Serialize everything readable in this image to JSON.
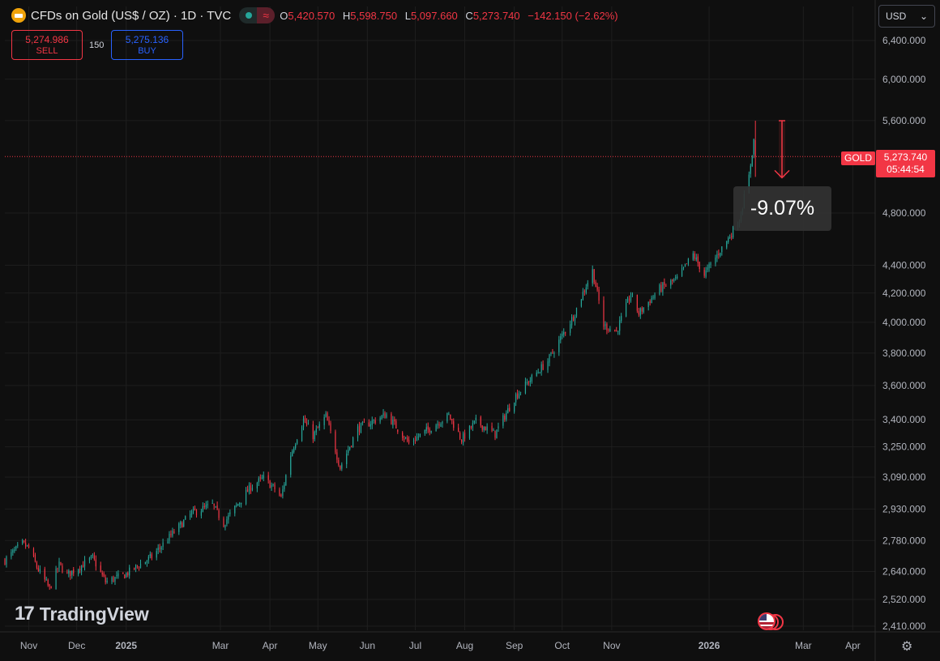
{
  "header": {
    "title": "CFDs on Gold (US$ / OZ) · 1D · TVC",
    "open_label": "O",
    "open": "5,420.570",
    "high_label": "H",
    "high": "5,598.750",
    "low_label": "L",
    "low": "5,097.660",
    "close_label": "C",
    "close": "5,273.740",
    "change": "−142.150 (−2.62%)",
    "market_status_icon": "market-open-dot-icon",
    "wave_icon": "≈"
  },
  "trade": {
    "sell_price": "5,274.986",
    "sell_label": "SELL",
    "spread": "150",
    "buy_price": "5,275.136",
    "buy_label": "BUY"
  },
  "currency": {
    "label": "USD",
    "chevron": "⌄"
  },
  "watermark": {
    "icon": "17",
    "text": "TradingView"
  },
  "price_label": {
    "symbol": "GOLD",
    "price": "5,273.740",
    "countdown": "05:44:54"
  },
  "measure": {
    "text": "-9.07%"
  },
  "colors": {
    "up": "#26a69a",
    "down": "#f23645",
    "background": "#0f0f0f",
    "grid": "#1e1e1e",
    "axis_text": "#b2b5be"
  },
  "chart_data": {
    "type": "candlestick",
    "y_scale": "log",
    "ylim": [
      2410,
      6400
    ],
    "y_ticks": [
      "6,400.000",
      "6,000.000",
      "5,600.000",
      "4,800.000",
      "4,400.000",
      "4,200.000",
      "4,000.000",
      "3,800.000",
      "3,600.000",
      "3,400.000",
      "3,250.000",
      "3,090.000",
      "2,930.000",
      "2,780.000",
      "2,640.000",
      "2,520.000",
      "2,410.000"
    ],
    "x_labels": [
      "Nov",
      "Dec",
      "2025",
      "Mar",
      "Apr",
      "May",
      "Jun",
      "Jul",
      "Aug",
      "Sep",
      "Oct",
      "Nov",
      "2026",
      "Mar",
      "Apr"
    ],
    "x_label_dates": [
      "2024-11-01",
      "2024-12-01",
      "2025-01-01",
      "2025-03-01",
      "2025-04-01",
      "2025-05-01",
      "2025-06-01",
      "2025-07-01",
      "2025-08-01",
      "2025-09-01",
      "2025-10-01",
      "2025-11-01",
      "2026-01-01",
      "2026-03-01",
      "2026-04-01"
    ],
    "x_range": [
      "2024-10-17",
      "2026-04-15"
    ],
    "price_path": [
      [
        "2024-10-17",
        2690
      ],
      [
        "2024-10-28",
        2765
      ],
      [
        "2024-11-01",
        2745
      ],
      [
        "2024-11-06",
        2660
      ],
      [
        "2024-11-14",
        2565
      ],
      [
        "2024-11-20",
        2670
      ],
      [
        "2024-11-25",
        2625
      ],
      [
        "2024-12-11",
        2700
      ],
      [
        "2024-12-19",
        2595
      ],
      [
        "2024-12-31",
        2625
      ],
      [
        "2025-01-17",
        2705
      ],
      [
        "2025-02-11",
        2910
      ],
      [
        "2025-02-24",
        2950
      ],
      [
        "2025-03-03",
        2860
      ],
      [
        "2025-03-20",
        3040
      ],
      [
        "2025-03-28",
        3085
      ],
      [
        "2025-04-04",
        3030
      ],
      [
        "2025-04-08",
        2985
      ],
      [
        "2025-04-14",
        3210
      ],
      [
        "2025-04-22",
        3400
      ],
      [
        "2025-04-28",
        3310
      ],
      [
        "2025-05-06",
        3420
      ],
      [
        "2025-05-15",
        3140
      ],
      [
        "2025-05-26",
        3350
      ],
      [
        "2025-06-13",
        3430
      ],
      [
        "2025-06-27",
        3270
      ],
      [
        "2025-07-22",
        3425
      ],
      [
        "2025-07-30",
        3290
      ],
      [
        "2025-08-08",
        3390
      ],
      [
        "2025-08-20",
        3320
      ],
      [
        "2025-09-02",
        3540
      ],
      [
        "2025-09-22",
        3750
      ],
      [
        "2025-10-08",
        4040
      ],
      [
        "2025-10-20",
        4360
      ],
      [
        "2025-10-27",
        3980
      ],
      [
        "2025-11-04",
        3940
      ],
      [
        "2025-11-13",
        4190
      ],
      [
        "2025-11-18",
        4060
      ],
      [
        "2025-12-01",
        4230
      ],
      [
        "2025-12-12",
        4300
      ],
      [
        "2025-12-22",
        4480
      ],
      [
        "2025-12-29",
        4330
      ],
      [
        "2026-01-13",
        4600
      ],
      [
        "2026-01-20",
        4750
      ],
      [
        "2026-01-26",
        5100
      ],
      [
        "2026-01-29",
        5420
      ],
      [
        "2026-01-30",
        5273.74
      ]
    ],
    "last_close": 5273.74,
    "measure_from": 5598.75,
    "measure_to": 5090.9
  }
}
